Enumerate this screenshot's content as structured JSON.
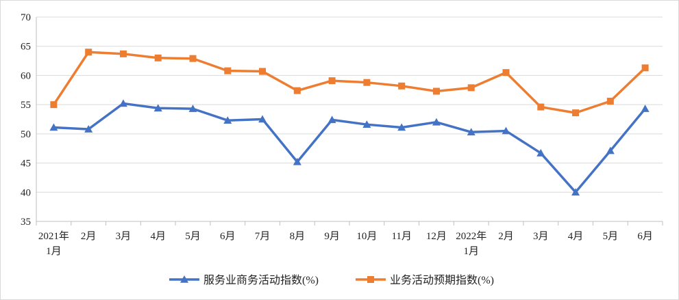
{
  "chart_data": {
    "type": "line",
    "title": "",
    "xlabel": "",
    "ylabel": "",
    "ylim": [
      35,
      70
    ],
    "yticks": [
      35,
      40,
      45,
      50,
      55,
      60,
      65,
      70
    ],
    "grid": "horizontal",
    "legend_position": "bottom",
    "categories": [
      [
        "2021年",
        "1月"
      ],
      [
        "2月"
      ],
      [
        "3月"
      ],
      [
        "4月"
      ],
      [
        "5月"
      ],
      [
        "6月"
      ],
      [
        "7月"
      ],
      [
        "8月"
      ],
      [
        "9月"
      ],
      [
        "10月"
      ],
      [
        "11月"
      ],
      [
        "12月"
      ],
      [
        "2022年",
        "1月"
      ],
      [
        "2月"
      ],
      [
        "3月"
      ],
      [
        "4月"
      ],
      [
        "5月"
      ],
      [
        "6月"
      ]
    ],
    "series": [
      {
        "name": "服务业商务活动指数(%)",
        "color": "#4472c4",
        "marker": "triangle",
        "values": [
          51.1,
          50.8,
          55.2,
          54.4,
          54.3,
          52.3,
          52.5,
          45.2,
          52.4,
          51.6,
          51.1,
          52.0,
          50.3,
          50.5,
          46.7,
          40.0,
          47.1,
          54.3
        ]
      },
      {
        "name": "业务活动预期指数(%)",
        "color": "#ed7d31",
        "marker": "square",
        "values": [
          55.0,
          64.0,
          63.7,
          63.0,
          62.9,
          60.8,
          60.7,
          57.4,
          59.1,
          58.8,
          58.2,
          57.3,
          57.9,
          60.5,
          54.6,
          53.6,
          55.6,
          61.3
        ]
      }
    ]
  }
}
